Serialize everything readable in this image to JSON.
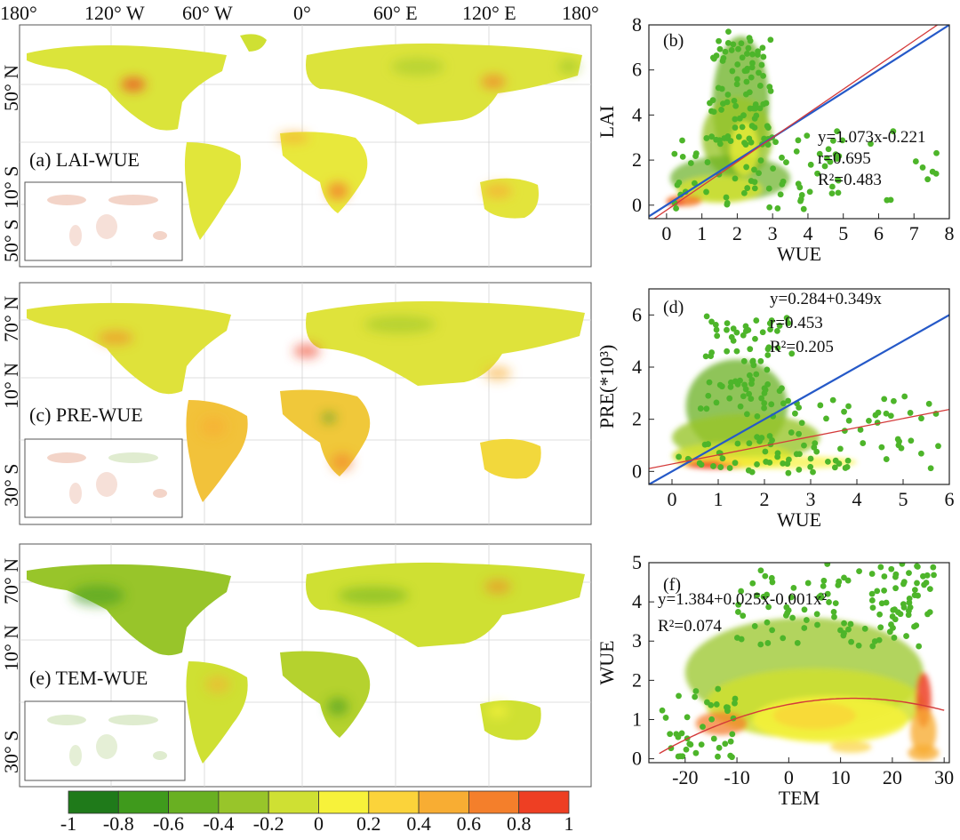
{
  "colors": {
    "scale": [
      "#1f7a1a",
      "#3f9a1c",
      "#69b022",
      "#98c52a",
      "#cfe033",
      "#f7f23a",
      "#fbd33a",
      "#f8ad33",
      "#f47f2b",
      "#ee3f23"
    ],
    "point_green": "#4db52a",
    "fit_red": "#d43a3a",
    "line_blue": "#2559c8"
  },
  "maps": {
    "lon_labels": [
      "180°",
      "120° W",
      "60° W",
      "0°",
      "60° E",
      "120° E",
      "180°"
    ],
    "panels": [
      {
        "label": "(a) LAI-WUE",
        "lat_labels": [
          "50° N",
          "10° S",
          "50° S"
        ]
      },
      {
        "label": "(c) PRE-WUE",
        "lat_labels": [
          "70° N",
          "10° N",
          "30° S"
        ]
      },
      {
        "label": "(e) TEM-WUE",
        "lat_labels": [
          "70° N",
          "10° N",
          "30° S"
        ]
      }
    ]
  },
  "colorbar": {
    "ticks": [
      "-1",
      "-0.8",
      "-0.6",
      "-0.4",
      "-0.2",
      "0",
      "0.2",
      "0.4",
      "0.6",
      "0.8",
      "1"
    ]
  },
  "chart_data": [
    {
      "type": "scatter",
      "panel": "(b)",
      "xlabel": "WUE",
      "ylabel": "LAI",
      "xlim": [
        -0.5,
        8
      ],
      "ylim": [
        -0.6,
        8
      ],
      "xticks": [
        0,
        1,
        2,
        3,
        4,
        5,
        6,
        7,
        8
      ],
      "yticks": [
        0,
        2,
        4,
        6,
        8
      ],
      "annotations": [
        "y=1.073x-0.221",
        "r=0.695",
        "R²=0.483"
      ],
      "fit": {
        "slope": 1.073,
        "intercept": -0.221
      },
      "reference_line": {
        "slope": 1,
        "intercept": 0
      }
    },
    {
      "type": "scatter",
      "panel": "(d)",
      "xlabel": "WUE",
      "ylabel": "PRE(*10³)",
      "xlim": [
        -0.5,
        6
      ],
      "ylim": [
        -0.5,
        7
      ],
      "xticks": [
        0,
        1,
        2,
        3,
        4,
        5,
        6
      ],
      "yticks": [
        0,
        2,
        4,
        6
      ],
      "annotations": [
        "y=0.284+0.349x",
        "r=0.453",
        "R²=0.205"
      ],
      "fit": {
        "slope": 0.349,
        "intercept": 0.284
      },
      "reference_line": {
        "slope": 1,
        "intercept": 0
      }
    },
    {
      "type": "scatter",
      "panel": "(f)",
      "xlabel": "TEM",
      "ylabel": "WUE",
      "xlim": [
        -27,
        31
      ],
      "ylim": [
        -0.1,
        5
      ],
      "xticks": [
        -20,
        -10,
        0,
        10,
        20,
        30
      ],
      "yticks": [
        0,
        1,
        2,
        3,
        4,
        5
      ],
      "annotations": [
        "y=1.384+0.025x-0.001x²",
        "R²=0.074"
      ],
      "fit": {
        "c0": 1.384,
        "c1": 0.025,
        "c2": -0.001
      }
    }
  ]
}
